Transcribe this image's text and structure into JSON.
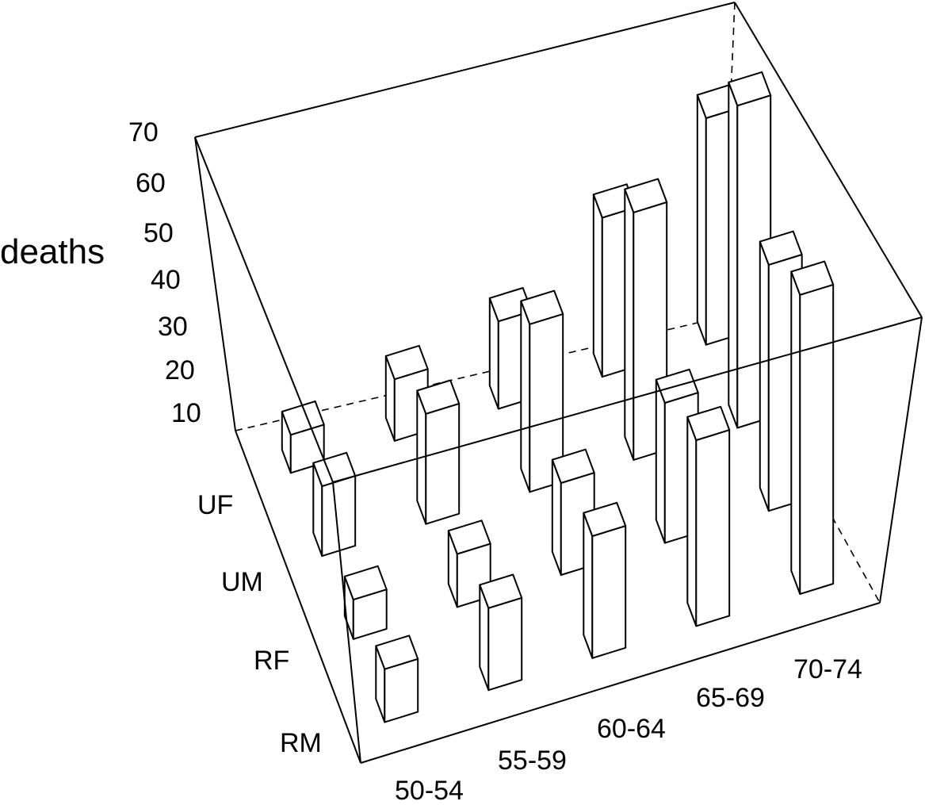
{
  "chart_data": {
    "type": "bar3d",
    "zlabel": "deaths",
    "zlim": [
      0,
      70
    ],
    "z_ticks": [
      "70",
      "60",
      "50",
      "40",
      "30",
      "20",
      "10"
    ],
    "age_groups": [
      "50-54",
      "55-59",
      "60-64",
      "65-69",
      "70-74"
    ],
    "groups": [
      "RM",
      "RF",
      "UM",
      "UF"
    ],
    "series": [
      {
        "name": "RM",
        "values": [
          11.7,
          18.1,
          26.9,
          41.0,
          66.0
        ]
      },
      {
        "name": "RF",
        "values": [
          8.7,
          11.7,
          20.3,
          30.9,
          54.3
        ]
      },
      {
        "name": "UM",
        "values": [
          15.4,
          24.3,
          37.0,
          54.6,
          71.1
        ]
      },
      {
        "name": "UF",
        "values": [
          8.4,
          13.6,
          19.3,
          35.1,
          50.0
        ]
      }
    ]
  }
}
